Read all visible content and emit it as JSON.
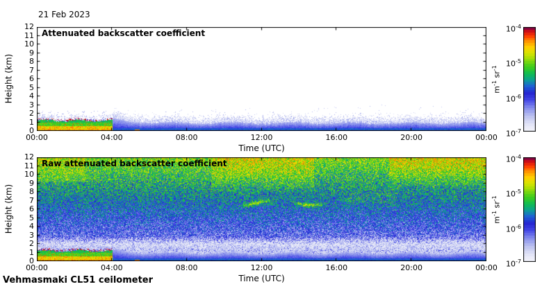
{
  "date_label": "21 Feb 2023",
  "footer": {
    "instrument": "Vehmasmaki CL51 ceilometer"
  },
  "colors": {
    "background": "#ffffff",
    "axis": "#000000",
    "colormap": [
      [
        0.0,
        "#f4f5fc"
      ],
      [
        0.06,
        "#e4e6f7"
      ],
      [
        0.14,
        "#c0c5f0"
      ],
      [
        0.22,
        "#8890ec"
      ],
      [
        0.3,
        "#4447e6"
      ],
      [
        0.37,
        "#2222cf"
      ],
      [
        0.43,
        "#1f5fd6"
      ],
      [
        0.49,
        "#0c9d9a"
      ],
      [
        0.55,
        "#0fbc53"
      ],
      [
        0.62,
        "#3fcd1c"
      ],
      [
        0.69,
        "#93dc0a"
      ],
      [
        0.75,
        "#d8e400"
      ],
      [
        0.81,
        "#ffd000"
      ],
      [
        0.87,
        "#ff8c00"
      ],
      [
        0.92,
        "#ff3a00"
      ],
      [
        0.96,
        "#cc0d18"
      ],
      [
        1.0,
        "#6b0051"
      ]
    ]
  },
  "panels": [
    {
      "title": "Attenuated backscatter coefficient",
      "ylabel": "Height (km)",
      "xlabel": "Time (UTC)",
      "yticks": [
        "0",
        "1",
        "2",
        "3",
        "4",
        "5",
        "6",
        "7",
        "8",
        "9",
        "10",
        "11",
        "12"
      ],
      "xticks": [
        "00:00",
        "04:00",
        "08:00",
        "12:00",
        "16:00",
        "20:00",
        "00:00"
      ],
      "colorbar": {
        "tick_base": "10",
        "tick_exponents": [
          "-4",
          "-5",
          "-6",
          "-7"
        ],
        "unit_parts": [
          [
            "m",
            "-1"
          ],
          [
            " sr",
            "-1"
          ]
        ]
      }
    },
    {
      "title": "Raw attenuated backscatter coefficient",
      "ylabel": "Height (km)",
      "xlabel": "Time (UTC)",
      "yticks": [
        "0",
        "1",
        "2",
        "3",
        "4",
        "5",
        "6",
        "7",
        "8",
        "9",
        "10",
        "11",
        "12"
      ],
      "xticks": [
        "00:00",
        "04:00",
        "08:00",
        "12:00",
        "16:00",
        "20:00",
        "00:00"
      ],
      "colorbar": {
        "tick_base": "10",
        "tick_exponents": [
          "-4",
          "-5",
          "-6",
          "-7"
        ],
        "unit_parts": [
          [
            "m",
            "-1"
          ],
          [
            " sr",
            "-1"
          ]
        ]
      }
    }
  ],
  "chart_data": [
    {
      "type": "heatmap",
      "title": "Attenuated backscatter coefficient",
      "xlabel": "Time (UTC)",
      "ylabel": "Height (km)",
      "x_hours": [
        0,
        24
      ],
      "x_tick_step_hours": 4,
      "ylim": [
        0,
        12
      ],
      "grid": false,
      "legend_position": "colorbar-right",
      "colorbar": {
        "scale": "log10",
        "min": 1e-07,
        "max": 0.0001,
        "units": "m-1 sr-1",
        "tick_values": [
          0.0001,
          1e-05,
          1e-06,
          1e-07
        ]
      },
      "kind": "attenuated",
      "seed": 11,
      "features": [
        {
          "name": "boundary-layer-aerosol-cloud",
          "time_utc": [
            0,
            4.1
          ],
          "height_km": [
            0,
            1.3
          ],
          "backscatter": [
            1e-05,
            0.0001
          ],
          "appearance": "orange-red near surface, green upper part"
        },
        {
          "name": "cloud-base-speckle-line",
          "time_utc": [
            0,
            4.1
          ],
          "height_km": [
            1.2,
            1.5
          ],
          "backscatter": [
            1e-06,
            0.0001
          ],
          "appearance": "dark red / blue / white speckle"
        },
        {
          "name": "weak-boundary-layer",
          "time_utc": [
            4.1,
            24
          ],
          "height_km": [
            0,
            2
          ],
          "backscatter": [
            1e-07,
            1e-06
          ],
          "appearance": "blue band fading to lavender speckle top"
        },
        {
          "name": "surface-signal-line",
          "time_utc": [
            13,
            24
          ],
          "height_km": [
            0,
            0.1
          ],
          "backscatter": [
            2e-06,
            5e-06
          ],
          "appearance": "teal-green line"
        },
        {
          "name": "surface-signal-dashes",
          "time_utc": [
            5.9,
            6.6
          ],
          "height_km": [
            0,
            0.1
          ],
          "backscatter": [
            2e-06,
            5e-06
          ]
        },
        {
          "name": "clear-air",
          "time_utc": [
            0,
            24
          ],
          "height_km": [
            2,
            12
          ],
          "backscatter": null,
          "appearance": "white background, sparse blue dots below 3 km"
        }
      ]
    },
    {
      "type": "heatmap",
      "title": "Raw attenuated backscatter coefficient",
      "xlabel": "Time (UTC)",
      "ylabel": "Height (km)",
      "x_hours": [
        0,
        24
      ],
      "x_tick_step_hours": 4,
      "ylim": [
        0,
        12
      ],
      "grid": false,
      "legend_position": "colorbar-right",
      "colorbar": {
        "scale": "log10",
        "min": 1e-07,
        "max": 0.0001,
        "units": "m-1 sr-1",
        "tick_values": [
          0.0001,
          1e-05,
          1e-06,
          1e-07
        ]
      },
      "kind": "raw",
      "seed": 7,
      "features": [
        {
          "name": "boundary-layer-aerosol-cloud",
          "time_utc": [
            0,
            4.1
          ],
          "height_km": [
            0,
            1.3
          ],
          "backscatter": [
            1e-05,
            0.0001
          ]
        },
        {
          "name": "cloud-base-speckle-line",
          "time_utc": [
            0,
            4.1
          ],
          "height_km": [
            1.2,
            1.5
          ],
          "backscatter": [
            1e-06,
            0.0001
          ]
        },
        {
          "name": "weak-boundary-layer",
          "time_utc": [
            4.1,
            24
          ],
          "height_km": [
            0,
            2
          ],
          "backscatter": [
            1e-07,
            1e-06
          ]
        },
        {
          "name": "range-dependent-noise",
          "time_utc": [
            0,
            24
          ],
          "height_km": [
            2,
            12
          ],
          "appearance": "noise increases with height: blue/white 2-4 km, green 5-8 km, green-yellow 8-12 km"
        },
        {
          "name": "low-noise-white-band",
          "time_utc": [
            0,
            24
          ],
          "height_km": [
            1.3,
            2.7
          ],
          "appearance": "pale speckle"
        },
        {
          "name": "cirrus-streaks",
          "time_utc": [
            11,
            17
          ],
          "height_km": [
            6.2,
            7.4
          ],
          "appearance": "yellow-green wavy streaks"
        },
        {
          "name": "upper-yellow-patches",
          "time_utc": [
            9.5,
            14.5
          ],
          "height_km": [
            8,
            12
          ]
        },
        {
          "name": "upper-yellow-patches-evening",
          "time_utc": [
            19,
            24
          ],
          "height_km": [
            8.5,
            12
          ]
        },
        {
          "name": "surface-signal-line",
          "time_utc": [
            6.1,
            11.6
          ],
          "height_km": [
            0,
            0.1
          ]
        }
      ]
    }
  ]
}
